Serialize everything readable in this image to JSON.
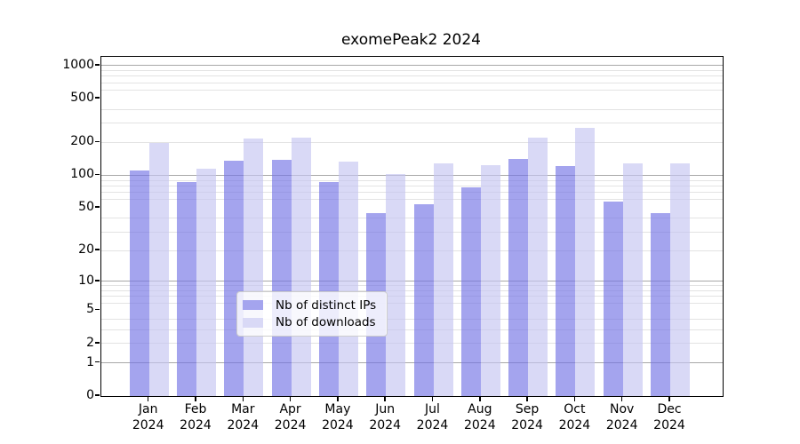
{
  "title": "exomePeak2 2024",
  "chart_data": {
    "type": "bar",
    "title": "exomePeak2 2024",
    "categories": [
      "Jan 2024",
      "Feb 2024",
      "Mar 2024",
      "Apr 2024",
      "May 2024",
      "Jun 2024",
      "Jul 2024",
      "Aug 2024",
      "Sep 2024",
      "Oct 2024",
      "Nov 2024",
      "Dec 2024"
    ],
    "series": [
      {
        "name": "Nb of distinct IPs",
        "color": "#a4a4ee",
        "values": [
          110,
          87,
          136,
          139,
          86,
          45,
          54,
          78,
          141,
          122,
          57,
          45
        ]
      },
      {
        "name": "Nb of downloads",
        "color": "#d9d9f6",
        "values": [
          197,
          114,
          218,
          221,
          133,
          103,
          129,
          124,
          219,
          270,
          129,
          129
        ]
      }
    ],
    "y_axis": {
      "scale": "log10(value+1)",
      "labeled_ticks": [
        1000,
        500,
        200,
        100,
        50,
        20,
        10,
        5,
        2,
        1,
        0
      ],
      "major_grid_ticks": [
        1000,
        100,
        10,
        1
      ],
      "minor_grid_ticks": [
        2,
        3,
        4,
        6,
        7,
        8,
        9,
        20,
        30,
        40,
        60,
        70,
        80,
        90,
        200,
        300,
        400,
        600,
        700,
        800,
        900
      ],
      "ylim": [
        0,
        1200
      ]
    },
    "xlabel": "",
    "ylabel": "",
    "grid": true,
    "legend_position": "bottom-center"
  },
  "colors": {
    "bar_ips": "#a4a4ee",
    "bar_downloads": "#d9d9f6",
    "grid_major": "#a8a8a8",
    "grid_minor": "#e3e3e3",
    "axis": "#000000",
    "background": "#ffffff",
    "legend_border": "#cccccc"
  }
}
